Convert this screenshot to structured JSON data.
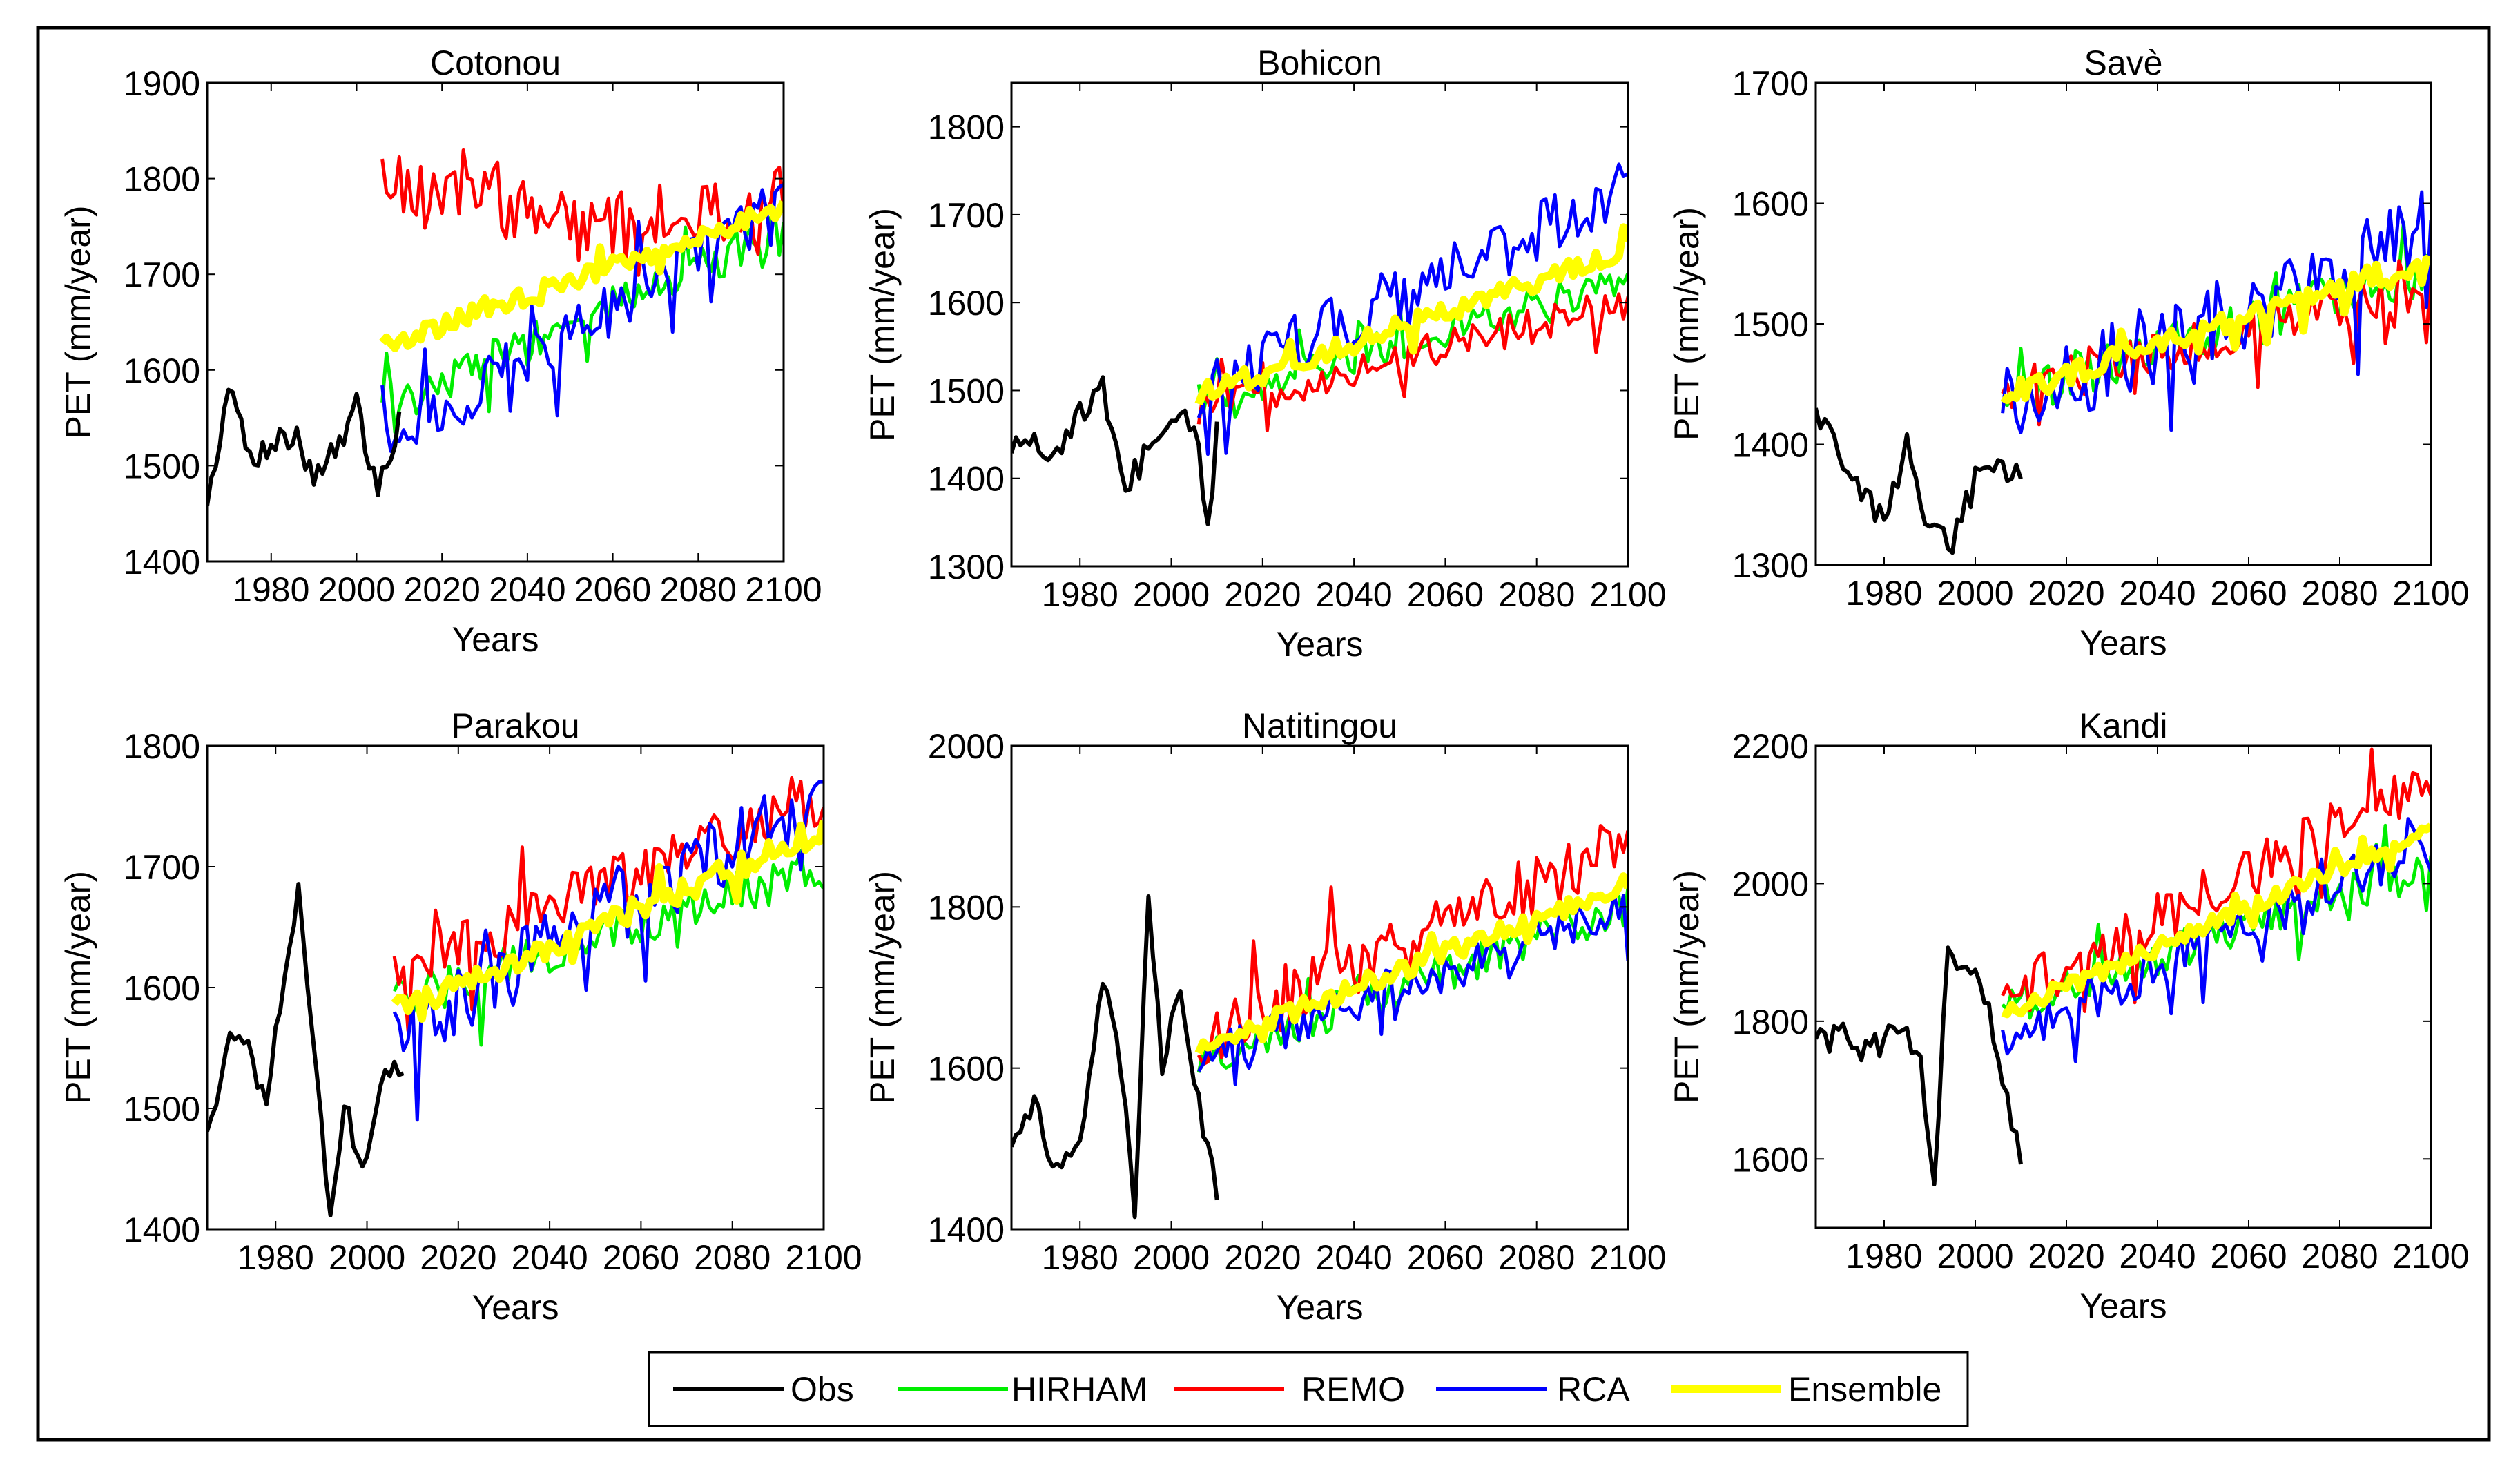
{
  "figure": {
    "legend": {
      "entries": [
        {
          "name": "Obs",
          "color": "#000000"
        },
        {
          "name": "HIRHAM",
          "color": "#00ee00"
        },
        {
          "name": "REMO",
          "color": "#ff0000"
        },
        {
          "name": "RCA",
          "color": "#0000ff"
        },
        {
          "name": "Ensemble",
          "color": "#ffff00"
        }
      ]
    }
  },
  "chart_data": [
    {
      "type": "line",
      "title": "Cotonou",
      "xlabel": "Years",
      "ylabel": "PET (mm/year)",
      "xlim": [
        1965,
        2100
      ],
      "ylim": [
        1400,
        1900
      ],
      "xticks": [
        1980,
        2000,
        2020,
        2040,
        2060,
        2080,
        2100
      ],
      "yticks": [
        1400,
        1500,
        1600,
        1700,
        1800,
        1900
      ],
      "obs": {
        "x": [
          1965,
          1970,
          1975,
          1980,
          1985,
          1990,
          1995,
          2000,
          2005,
          2010
        ],
        "y": [
          1460,
          1580,
          1510,
          1520,
          1535,
          1490,
          1520,
          1560,
          1470,
          1550
        ]
      },
      "series": [
        {
          "name": "HIRHAM",
          "start": 2006,
          "y0": 1560,
          "y1": 1745,
          "noise": 22
        },
        {
          "name": "REMO",
          "x": [
            2006,
            2015,
            2025,
            2035,
            2045,
            2055,
            2065,
            2075,
            2085,
            2095,
            2100
          ],
          "y": [
            1810,
            1780,
            1800,
            1770,
            1760,
            1740,
            1760,
            1770,
            1760,
            1765,
            1780
          ],
          "noise": 35
        },
        {
          "name": "RCA",
          "start": 2006,
          "y0": 1520,
          "y1": 1775,
          "noise": 30
        },
        {
          "name": "Ensemble",
          "start": 2006,
          "y0": 1625,
          "y1": 1770,
          "noise": 10
        }
      ]
    },
    {
      "type": "line",
      "title": "Bohicon",
      "xlabel": "Years",
      "ylabel": "PET (mm/year)",
      "xlim": [
        1965,
        2100
      ],
      "ylim": [
        1300,
        1850
      ],
      "xticks": [
        1980,
        2000,
        2020,
        2040,
        2060,
        2080,
        2100
      ],
      "yticks": [
        1300,
        1400,
        1500,
        1600,
        1700,
        1800
      ],
      "obs": {
        "x": [
          1965,
          1970,
          1975,
          1980,
          1985,
          1990,
          1995,
          2000,
          2005,
          2008,
          2010
        ],
        "y": [
          1430,
          1450,
          1420,
          1470,
          1500,
          1390,
          1430,
          1450,
          1470,
          1340,
          1460
        ]
      },
      "series": [
        {
          "name": "HIRHAM",
          "start": 2006,
          "y0": 1490,
          "y1": 1625,
          "noise": 20
        },
        {
          "name": "REMO",
          "start": 2006,
          "y0": 1480,
          "y1": 1600,
          "noise": 20
        },
        {
          "name": "RCA",
          "start": 2006,
          "y0": 1500,
          "y1": 1730,
          "noise": 35
        },
        {
          "name": "Ensemble",
          "start": 2006,
          "y0": 1495,
          "y1": 1660,
          "noise": 12
        }
      ]
    },
    {
      "type": "line",
      "title": "Savè",
      "xlabel": "Years",
      "ylabel": "PET (mm/year)",
      "xlim": [
        1965,
        2100
      ],
      "ylim": [
        1300,
        1700
      ],
      "xticks": [
        1980,
        2000,
        2020,
        2040,
        2060,
        2080,
        2100
      ],
      "yticks": [
        1300,
        1400,
        1500,
        1600,
        1700
      ],
      "obs": {
        "x": [
          1965,
          1970,
          1975,
          1980,
          1985,
          1990,
          1995,
          2000,
          2005,
          2010
        ],
        "y": [
          1430,
          1390,
          1360,
          1340,
          1400,
          1330,
          1320,
          1370,
          1380,
          1370
        ]
      },
      "series": [
        {
          "name": "HIRHAM",
          "start": 2006,
          "y0": 1440,
          "y1": 1545,
          "noise": 20
        },
        {
          "name": "REMO",
          "start": 2006,
          "y0": 1445,
          "y1": 1530,
          "noise": 20
        },
        {
          "name": "RCA",
          "start": 2006,
          "y0": 1430,
          "y1": 1580,
          "noise": 35
        },
        {
          "name": "Ensemble",
          "start": 2006,
          "y0": 1440,
          "y1": 1555,
          "noise": 10
        }
      ]
    },
    {
      "type": "line",
      "title": "Parakou",
      "xlabel": "Years",
      "ylabel": "PET (mm/year)",
      "xlim": [
        1965,
        2100
      ],
      "ylim": [
        1400,
        1800
      ],
      "xticks": [
        1980,
        2000,
        2020,
        2040,
        2060,
        2080,
        2100
      ],
      "yticks": [
        1400,
        1500,
        1600,
        1700,
        1800
      ],
      "obs": {
        "x": [
          1965,
          1970,
          1975,
          1978,
          1982,
          1985,
          1988,
          1992,
          1995,
          2000,
          2003,
          2008
        ],
        "y": [
          1480,
          1560,
          1540,
          1500,
          1620,
          1680,
          1560,
          1410,
          1500,
          1450,
          1520,
          1540
        ]
      },
      "series": [
        {
          "name": "HIRHAM",
          "start": 2006,
          "y0": 1585,
          "y1": 1700,
          "noise": 20
        },
        {
          "name": "REMO",
          "start": 2006,
          "y0": 1610,
          "y1": 1760,
          "noise": 25
        },
        {
          "name": "RCA",
          "start": 2006,
          "y0": 1560,
          "y1": 1760,
          "noise": 30
        },
        {
          "name": "Ensemble",
          "start": 2006,
          "y0": 1580,
          "y1": 1730,
          "noise": 10
        }
      ]
    },
    {
      "type": "line",
      "title": "Natitingou",
      "xlabel": "Years",
      "ylabel": "PET (mm/year)",
      "xlim": [
        1965,
        2100
      ],
      "ylim": [
        1400,
        2000
      ],
      "xticks": [
        1980,
        2000,
        2020,
        2040,
        2060,
        2080,
        2100
      ],
      "yticks": [
        1400,
        1600,
        1800,
        2000
      ],
      "obs": {
        "x": [
          1965,
          1970,
          1975,
          1980,
          1985,
          1988,
          1992,
          1995,
          1998,
          2002,
          2006,
          2010
        ],
        "y": [
          1500,
          1560,
          1470,
          1520,
          1700,
          1650,
          1420,
          1830,
          1600,
          1700,
          1560,
          1440
        ]
      },
      "series": [
        {
          "name": "HIRHAM",
          "start": 2006,
          "y0": 1610,
          "y1": 1800,
          "noise": 25
        },
        {
          "name": "REMO",
          "start": 2006,
          "y0": 1640,
          "y1": 1880,
          "noise": 40
        },
        {
          "name": "RCA",
          "start": 2006,
          "y0": 1610,
          "y1": 1800,
          "noise": 25
        },
        {
          "name": "Ensemble",
          "start": 2006,
          "y0": 1625,
          "y1": 1830,
          "noise": 12
        }
      ]
    },
    {
      "type": "line",
      "title": "Kandi",
      "xlabel": "Years",
      "ylabel": "PET (mm/year)",
      "xlim": [
        1965,
        2100
      ],
      "ylim": [
        1500,
        2200
      ],
      "xticks": [
        1980,
        2000,
        2020,
        2040,
        2060,
        2080,
        2100
      ],
      "yticks": [
        1600,
        1800,
        2000,
        2200
      ],
      "obs": {
        "x": [
          1965,
          1970,
          1975,
          1980,
          1985,
          1988,
          1991,
          1994,
          1998,
          2002,
          2006,
          2010
        ],
        "y": [
          1770,
          1780,
          1760,
          1770,
          1790,
          1740,
          1570,
          1900,
          1880,
          1840,
          1700,
          1600
        ]
      },
      "series": [
        {
          "name": "HIRHAM",
          "start": 2006,
          "y0": 1820,
          "y1": 2030,
          "noise": 30
        },
        {
          "name": "REMO",
          "start": 2006,
          "y0": 1830,
          "y1": 2150,
          "noise": 40
        },
        {
          "name": "RCA",
          "start": 2006,
          "y0": 1780,
          "y1": 2060,
          "noise": 35
        },
        {
          "name": "Ensemble",
          "start": 2006,
          "y0": 1810,
          "y1": 2080,
          "noise": 12
        }
      ]
    }
  ]
}
